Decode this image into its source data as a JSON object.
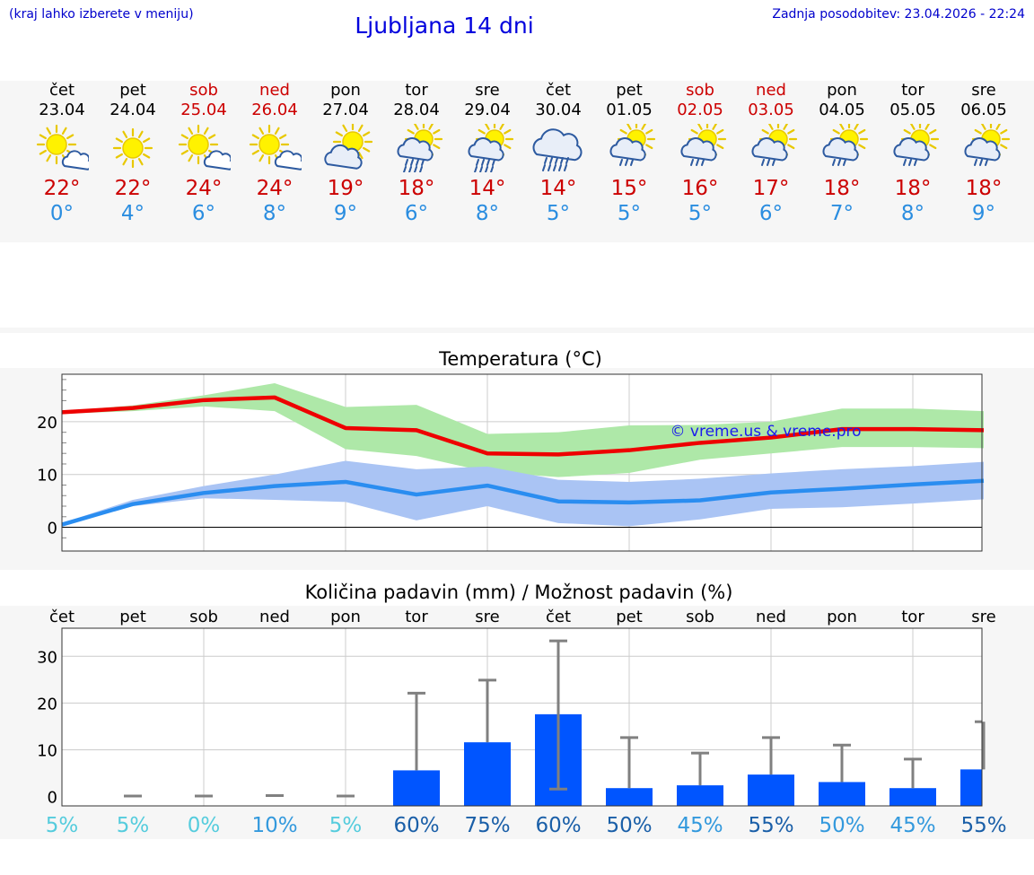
{
  "header": {
    "note": "(kraj lahko izberete v meniju)",
    "title": "Ljubljana 14 dni",
    "updated": "Zadnja posodobitev: 23.04.2026 - 22:24"
  },
  "days": [
    {
      "name": "čet",
      "date": "23.04",
      "weekend": false,
      "icon": "sun-cloud-icon",
      "tmax": "22°",
      "tmin": "0°"
    },
    {
      "name": "pet",
      "date": "24.04",
      "weekend": false,
      "icon": "sun-icon",
      "tmax": "22°",
      "tmin": "4°"
    },
    {
      "name": "sob",
      "date": "25.04",
      "weekend": true,
      "icon": "sun-cloud-icon",
      "tmax": "24°",
      "tmin": "6°"
    },
    {
      "name": "ned",
      "date": "26.04",
      "weekend": true,
      "icon": "sun-cloud-icon",
      "tmax": "24°",
      "tmin": "8°"
    },
    {
      "name": "pon",
      "date": "27.04",
      "weekend": false,
      "icon": "cloud-sun-icon",
      "tmax": "19°",
      "tmin": "9°"
    },
    {
      "name": "tor",
      "date": "28.04",
      "weekend": false,
      "icon": "sun-cloud-heavy-rain-icon",
      "tmax": "18°",
      "tmin": "6°"
    },
    {
      "name": "sre",
      "date": "29.04",
      "weekend": false,
      "icon": "sun-cloud-heavy-rain-icon",
      "tmax": "14°",
      "tmin": "8°"
    },
    {
      "name": "čet",
      "date": "30.04",
      "weekend": false,
      "icon": "cloud-heavy-rain-icon",
      "tmax": "14°",
      "tmin": "5°"
    },
    {
      "name": "pet",
      "date": "01.05",
      "weekend": false,
      "icon": "sun-cloud-rain-icon",
      "tmax": "15°",
      "tmin": "5°"
    },
    {
      "name": "sob",
      "date": "02.05",
      "weekend": true,
      "icon": "sun-cloud-rain-icon",
      "tmax": "16°",
      "tmin": "5°"
    },
    {
      "name": "ned",
      "date": "03.05",
      "weekend": true,
      "icon": "sun-cloud-rain-icon",
      "tmax": "17°",
      "tmin": "6°"
    },
    {
      "name": "pon",
      "date": "04.05",
      "weekend": false,
      "icon": "sun-cloud-rain-icon",
      "tmax": "18°",
      "tmin": "7°"
    },
    {
      "name": "tor",
      "date": "05.05",
      "weekend": false,
      "icon": "sun-cloud-rain-icon",
      "tmax": "18°",
      "tmin": "8°"
    },
    {
      "name": "sre",
      "date": "06.05",
      "weekend": false,
      "icon": "sun-cloud-rain-icon",
      "tmax": "18°",
      "tmin": "9°"
    }
  ],
  "colors": {
    "tmax": "#ee0000",
    "tmin": "#2a8df0",
    "tmax_band": "#aee8a8",
    "tmin_band": "#aac4f4",
    "bar": "#0055ff",
    "errbar": "#808080",
    "pct_light": "#55ccdd",
    "pct_mid": "#3399dd",
    "pct_dark": "#1a5fa8"
  },
  "chart_data": [
    {
      "type": "line",
      "title": "Temperatura (°C)",
      "watermark": "© vreme.us & vreme.pro",
      "x": [
        "23.04",
        "24.04",
        "25.04",
        "26.04",
        "27.04",
        "28.04",
        "29.04",
        "30.04",
        "01.05",
        "02.05",
        "03.05",
        "04.05",
        "05.05",
        "06.05"
      ],
      "ylim": [
        -4.5,
        29
      ],
      "yticks": [
        0,
        10,
        20
      ],
      "series": [
        {
          "name": "max",
          "values": [
            21.8,
            22.6,
            24.1,
            24.6,
            18.8,
            18.4,
            14.0,
            13.8,
            14.6,
            16.0,
            17.0,
            18.6,
            18.6,
            18.4
          ],
          "band_low": [
            21.5,
            22.0,
            22.9,
            22.0,
            14.8,
            13.5,
            10.5,
            9.5,
            10.3,
            12.8,
            14.0,
            15.2,
            15.2,
            15.0
          ],
          "band_high": [
            22.0,
            23.1,
            25.0,
            27.3,
            22.8,
            23.2,
            17.7,
            18.0,
            19.3,
            19.4,
            20.0,
            22.5,
            22.5,
            22.0
          ]
        },
        {
          "name": "min",
          "values": [
            0.5,
            4.4,
            6.5,
            7.8,
            8.6,
            6.2,
            7.9,
            4.9,
            4.7,
            5.1,
            6.6,
            7.3,
            8.1,
            8.8
          ],
          "band_low": [
            0.3,
            4.0,
            5.5,
            5.2,
            4.8,
            1.3,
            4.0,
            0.8,
            0.2,
            1.5,
            3.5,
            3.8,
            4.5,
            5.3
          ],
          "band_high": [
            0.8,
            5.2,
            7.8,
            10.0,
            12.6,
            11.0,
            11.5,
            9.0,
            8.6,
            9.2,
            10.2,
            11.0,
            11.6,
            12.4
          ]
        }
      ]
    },
    {
      "type": "bar",
      "title": "Količina padavin (mm) / Možnost padavin (%)",
      "categories": [
        "čet",
        "pet",
        "sob",
        "ned",
        "pon",
        "tor",
        "sre",
        "čet",
        "pet",
        "sob",
        "ned",
        "pon",
        "tor",
        "sre"
      ],
      "values": [
        0,
        0,
        0,
        0,
        0,
        5.6,
        11.6,
        17.6,
        1.8,
        2.4,
        4.7,
        3.1,
        1.8,
        5.8
      ],
      "err_low": [
        0,
        0,
        0,
        0,
        0,
        5.6,
        11.6,
        1.6,
        1.8,
        2.4,
        4.7,
        3.1,
        1.8,
        5.8
      ],
      "err_high": [
        0,
        0.1,
        0.1,
        0.2,
        0.1,
        22.1,
        24.9,
        33.3,
        12.6,
        9.3,
        12.6,
        11.0,
        8.0,
        16.0
      ],
      "ylim": [
        -2,
        36
      ],
      "yticks": [
        0,
        10,
        20,
        30
      ],
      "chance": [
        "5%",
        "5%",
        "0%",
        "10%",
        "5%",
        "60%",
        "75%",
        "60%",
        "50%",
        "45%",
        "55%",
        "50%",
        "45%",
        "55%"
      ],
      "chance_colors": [
        "pct_light",
        "pct_light",
        "pct_light",
        "pct_mid",
        "pct_light",
        "pct_dark",
        "pct_dark",
        "pct_dark",
        "pct_dark",
        "pct_mid",
        "pct_dark",
        "pct_mid",
        "pct_mid",
        "pct_dark"
      ]
    }
  ]
}
